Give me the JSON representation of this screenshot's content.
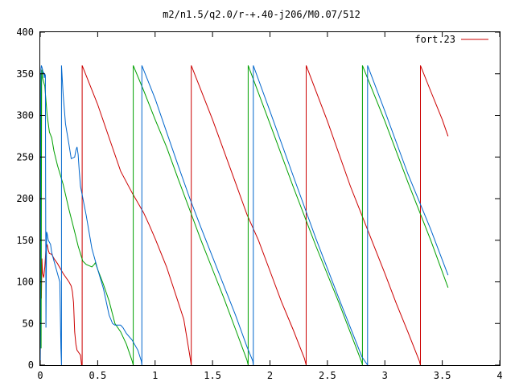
{
  "chart_data": {
    "type": "line",
    "title": "m2/n1.5/q2.0/r-+.40-j206/M0.07/512",
    "xlabel": "",
    "ylabel": "",
    "xlim": [
      0,
      4
    ],
    "ylim": [
      0,
      400
    ],
    "x_ticks": [
      0,
      0.5,
      1,
      1.5,
      2,
      2.5,
      3,
      3.5,
      4
    ],
    "x_tick_labels": [
      "0",
      "0.5",
      "1",
      "1.5",
      "2",
      "2.5",
      "3",
      "3.5",
      "4"
    ],
    "y_ticks": [
      0,
      50,
      100,
      150,
      200,
      250,
      300,
      350,
      400
    ],
    "y_tick_labels": [
      "0",
      "50",
      "100",
      "150",
      "200",
      "250",
      "300",
      "350",
      "400"
    ],
    "grid": false,
    "legend": {
      "position": "top-right",
      "entries": [
        "fort.23"
      ]
    },
    "series": [
      {
        "name": "fort.23",
        "color": "#cc0000",
        "points": [
          [
            0,
            0
          ],
          [
            0.005,
            130
          ],
          [
            0.01,
            80
          ],
          [
            0.015,
            128
          ],
          [
            0.02,
            110
          ],
          [
            0.03,
            105
          ],
          [
            0.04,
            118
          ],
          [
            0.05,
            140
          ],
          [
            0.06,
            145
          ],
          [
            0.07,
            138
          ],
          [
            0.08,
            134
          ],
          [
            0.1,
            133
          ],
          [
            0.12,
            128
          ],
          [
            0.15,
            122
          ],
          [
            0.2,
            110
          ],
          [
            0.25,
            100
          ],
          [
            0.27,
            95
          ],
          [
            0.28,
            88
          ],
          [
            0.29,
            75
          ],
          [
            0.3,
            40
          ],
          [
            0.31,
            25
          ],
          [
            0.32,
            18
          ],
          [
            0.33,
            16
          ],
          [
            0.35,
            12
          ],
          [
            0.36,
            0
          ],
          [
            0.365,
            0
          ],
          [
            0.365,
            360
          ],
          [
            0.5,
            313
          ],
          [
            0.6,
            273
          ],
          [
            0.7,
            233
          ],
          [
            0.8,
            207
          ],
          [
            0.9,
            183
          ],
          [
            0.95,
            168
          ],
          [
            1.0,
            152
          ],
          [
            1.1,
            118
          ],
          [
            1.2,
            76
          ],
          [
            1.25,
            55
          ],
          [
            1.3,
            13
          ],
          [
            1.315,
            0
          ],
          [
            1.315,
            360
          ],
          [
            1.5,
            295
          ],
          [
            1.7,
            219
          ],
          [
            1.8,
            181
          ],
          [
            1.9,
            150
          ],
          [
            2.0,
            113
          ],
          [
            2.1,
            76
          ],
          [
            2.2,
            43
          ],
          [
            2.3,
            8
          ],
          [
            2.315,
            0
          ],
          [
            2.315,
            360
          ],
          [
            2.5,
            293
          ],
          [
            2.7,
            215
          ],
          [
            2.8,
            180
          ],
          [
            2.9,
            145
          ],
          [
            3.0,
            110
          ],
          [
            3.1,
            74
          ],
          [
            3.2,
            40
          ],
          [
            3.3,
            5
          ],
          [
            3.31,
            0
          ],
          [
            3.31,
            360
          ],
          [
            3.4,
            329
          ],
          [
            3.5,
            295
          ],
          [
            3.55,
            275
          ]
        ]
      },
      {
        "name": "",
        "color": "#00a000",
        "points": [
          [
            0,
            0
          ],
          [
            0.005,
            350
          ],
          [
            0.008,
            20
          ],
          [
            0.012,
            340
          ],
          [
            0.015,
            355
          ],
          [
            0.02,
            345
          ],
          [
            0.04,
            335
          ],
          [
            0.06,
            300
          ],
          [
            0.08,
            280
          ],
          [
            0.1,
            273
          ],
          [
            0.12,
            257
          ],
          [
            0.15,
            240
          ],
          [
            0.2,
            217
          ],
          [
            0.25,
            187
          ],
          [
            0.3,
            160
          ],
          [
            0.33,
            143
          ],
          [
            0.35,
            134
          ],
          [
            0.37,
            125
          ],
          [
            0.4,
            121
          ],
          [
            0.45,
            118
          ],
          [
            0.47,
            121
          ],
          [
            0.48,
            123
          ],
          [
            0.5,
            115
          ],
          [
            0.55,
            97
          ],
          [
            0.6,
            77
          ],
          [
            0.65,
            50
          ],
          [
            0.7,
            40
          ],
          [
            0.75,
            25
          ],
          [
            0.8,
            5
          ],
          [
            0.81,
            0
          ],
          [
            0.81,
            360
          ],
          [
            0.9,
            330
          ],
          [
            1.0,
            295
          ],
          [
            1.1,
            262
          ],
          [
            1.2,
            224
          ],
          [
            1.3,
            187
          ],
          [
            1.4,
            150
          ],
          [
            1.5,
            115
          ],
          [
            1.6,
            80
          ],
          [
            1.7,
            43
          ],
          [
            1.8,
            6
          ],
          [
            1.81,
            0
          ],
          [
            1.81,
            360
          ],
          [
            2.0,
            290
          ],
          [
            2.2,
            215
          ],
          [
            2.4,
            143
          ],
          [
            2.6,
            75
          ],
          [
            2.8,
            3
          ],
          [
            2.805,
            0
          ],
          [
            2.805,
            360
          ],
          [
            3.0,
            293
          ],
          [
            3.2,
            220
          ],
          [
            3.4,
            150
          ],
          [
            3.55,
            93
          ]
        ]
      },
      {
        "name": "",
        "color": "#0066cc",
        "points": [
          [
            0,
            0
          ],
          [
            0.003,
            300
          ],
          [
            0.006,
            355
          ],
          [
            0.01,
            360
          ],
          [
            0.015,
            358
          ],
          [
            0.02,
            355
          ],
          [
            0.025,
            350
          ],
          [
            0.03,
            352
          ],
          [
            0.035,
            345
          ],
          [
            0.04,
            350
          ],
          [
            0.045,
            348
          ],
          [
            0.05,
            45
          ],
          [
            0.055,
            160
          ],
          [
            0.06,
            158
          ],
          [
            0.07,
            150
          ],
          [
            0.09,
            145
          ],
          [
            0.1,
            135
          ],
          [
            0.12,
            125
          ],
          [
            0.15,
            110
          ],
          [
            0.17,
            100
          ],
          [
            0.18,
            20
          ],
          [
            0.185,
            0
          ],
          [
            0.185,
            360
          ],
          [
            0.2,
            325
          ],
          [
            0.22,
            290
          ],
          [
            0.25,
            265
          ],
          [
            0.27,
            248
          ],
          [
            0.3,
            250
          ],
          [
            0.31,
            258
          ],
          [
            0.32,
            262
          ],
          [
            0.33,
            253
          ],
          [
            0.34,
            233
          ],
          [
            0.35,
            215
          ],
          [
            0.4,
            180
          ],
          [
            0.45,
            140
          ],
          [
            0.5,
            115
          ],
          [
            0.55,
            92
          ],
          [
            0.6,
            60
          ],
          [
            0.63,
            50
          ],
          [
            0.65,
            48
          ],
          [
            0.7,
            48
          ],
          [
            0.72,
            45
          ],
          [
            0.75,
            38
          ],
          [
            0.8,
            30
          ],
          [
            0.85,
            18
          ],
          [
            0.88,
            5
          ],
          [
            0.885,
            0
          ],
          [
            0.885,
            360
          ],
          [
            1.0,
            320
          ],
          [
            1.1,
            280
          ],
          [
            1.2,
            240
          ],
          [
            1.3,
            201
          ],
          [
            1.4,
            165
          ],
          [
            1.5,
            130
          ],
          [
            1.6,
            95
          ],
          [
            1.7,
            60
          ],
          [
            1.8,
            22
          ],
          [
            1.85,
            5
          ],
          [
            1.855,
            0
          ],
          [
            1.855,
            360
          ],
          [
            2.0,
            305
          ],
          [
            2.2,
            228
          ],
          [
            2.4,
            152
          ],
          [
            2.6,
            80
          ],
          [
            2.8,
            10
          ],
          [
            2.85,
            0
          ],
          [
            2.85,
            360
          ],
          [
            3.0,
            305
          ],
          [
            3.2,
            230
          ],
          [
            3.4,
            163
          ],
          [
            3.55,
            108
          ]
        ]
      }
    ]
  }
}
